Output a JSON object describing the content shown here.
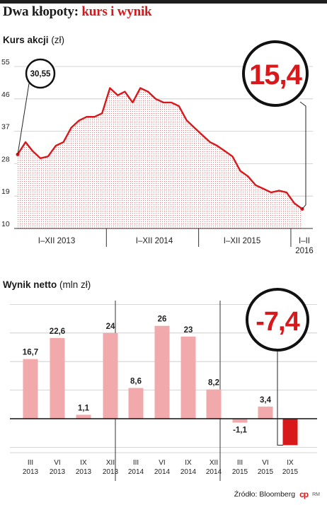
{
  "title": {
    "main": "Dwa kłopoty:",
    "accent": "kurs i wynik"
  },
  "colors": {
    "accent": "#d7191c",
    "bar": "#f1a9ab",
    "bar_negative_last": "#d7191c",
    "grid": "#cccccc"
  },
  "stock": {
    "subtitle": "Kurs akcji",
    "unit": "(zł)",
    "callout_start": "30,55",
    "callout_end": "15,4"
  },
  "profit": {
    "subtitle": "Wynik netto",
    "unit": "(mln zł)",
    "callout_last": "-7,4"
  },
  "source": "Źródło: Bloomberg",
  "logo_text": "cp",
  "logo_mark": "RM",
  "chart_data": [
    {
      "type": "area",
      "ylim": [
        10,
        55
      ],
      "yticks": [
        10,
        19,
        28,
        37,
        46,
        55
      ],
      "x_range": [
        "2013-01-01",
        "2016-02-29"
      ],
      "xtick_labels": [
        "I–XII 2013",
        "I–XII 2014",
        "I–XII 2015",
        "I–II 2016"
      ],
      "grid": true,
      "series": [
        {
          "x": [
            "2013-01",
            "2013-02",
            "2013-03",
            "2013-04",
            "2013-05",
            "2013-06",
            "2013-07",
            "2013-08",
            "2013-09",
            "2013-10",
            "2013-11",
            "2013-12",
            "2014-01",
            "2014-02",
            "2014-03",
            "2014-04",
            "2014-05",
            "2014-06",
            "2014-07",
            "2014-08",
            "2014-09",
            "2014-10",
            "2014-11",
            "2014-12",
            "2015-01",
            "2015-02",
            "2015-03",
            "2015-04",
            "2015-05",
            "2015-06",
            "2015-07",
            "2015-08",
            "2015-09",
            "2015-10",
            "2015-11",
            "2015-12",
            "2016-01",
            "2016-02"
          ],
          "values": [
            30.55,
            34,
            31.5,
            29.5,
            30,
            33,
            34,
            38,
            40,
            41,
            41,
            42,
            49,
            47,
            48,
            45,
            49,
            48,
            46,
            45,
            45,
            44,
            40,
            38,
            36,
            34,
            33,
            31.5,
            30,
            26,
            24.5,
            22,
            21,
            20,
            20.5,
            20,
            17,
            15.4
          ]
        }
      ]
    },
    {
      "type": "bar",
      "ylim": [
        -10,
        30
      ],
      "grid": true,
      "categories": [
        "III 2013",
        "VI 2013",
        "IX 2013",
        "XII 2013",
        "III 2014",
        "VI 2014",
        "IX 2014",
        "XII 2014",
        "III 2015",
        "VI 2015",
        "IX 2015"
      ],
      "value_labels": [
        "16,7",
        "22,6",
        "1,1",
        "24",
        "8,6",
        "26",
        "23",
        "8,2",
        "-1,1",
        "3,4",
        "-7,4"
      ],
      "values": [
        16.7,
        22.6,
        1.1,
        24,
        8.6,
        26,
        23,
        8.2,
        -1.1,
        3.4,
        -7.4
      ]
    }
  ]
}
